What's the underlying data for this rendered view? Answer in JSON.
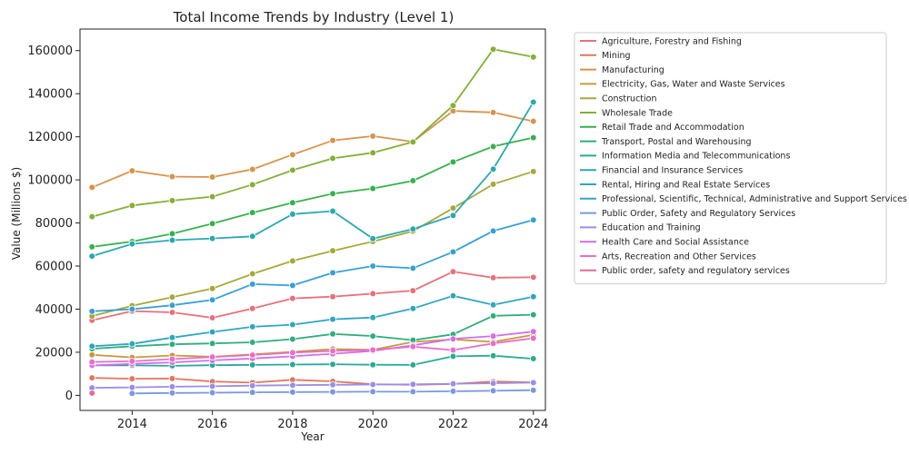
{
  "chart_data": {
    "type": "line",
    "title": "Total Income Trends by Industry (Level 1)",
    "xlabel": "Year",
    "ylabel": "Value (Millions $)",
    "xlim": [
      2012.7,
      2024.3
    ],
    "ylim": [
      -7000,
      170000
    ],
    "xticks": [
      2014,
      2016,
      2018,
      2020,
      2022,
      2024
    ],
    "yticks": [
      0,
      20000,
      40000,
      60000,
      80000,
      100000,
      120000,
      140000,
      160000
    ],
    "grid": false,
    "legend_position": "outside-right",
    "markers": true,
    "series": [
      {
        "name": "Agriculture, Forestry and Fishing",
        "color": "#e8707a",
        "x": [
          2013,
          2014,
          2015,
          2016,
          2017,
          2018,
          2019,
          2020,
          2021,
          2022,
          2023,
          2024
        ],
        "values": [
          34800,
          39100,
          38500,
          36000,
          40300,
          45000,
          45800,
          47200,
          48600,
          57400,
          54600,
          54800
        ]
      },
      {
        "name": "Mining",
        "color": "#e0785e",
        "x": [
          2013,
          2014,
          2015,
          2016,
          2017,
          2018,
          2019,
          2020,
          2021,
          2022,
          2023,
          2024
        ],
        "values": [
          8100,
          7700,
          7800,
          6400,
          5900,
          7200,
          6500,
          5200,
          4900,
          5300,
          6400,
          6000
        ]
      },
      {
        "name": "Manufacturing",
        "color": "#d8934a",
        "x": [
          2013,
          2014,
          2015,
          2016,
          2017,
          2018,
          2019,
          2020,
          2021,
          2022,
          2023,
          2024
        ],
        "values": [
          96500,
          104200,
          101500,
          101300,
          104900,
          111700,
          118300,
          120300,
          117700,
          132000,
          131300,
          127200
        ]
      },
      {
        "name": "Electricity, Gas, Water and Waste Services",
        "color": "#c59b3e",
        "x": [
          2013,
          2014,
          2015,
          2016,
          2017,
          2018,
          2019,
          2020,
          2021,
          2022,
          2023,
          2024
        ],
        "values": [
          18800,
          17600,
          18500,
          17900,
          19000,
          20200,
          21500,
          21100,
          24800,
          25900,
          24800,
          28100
        ]
      },
      {
        "name": "Construction",
        "color": "#a8a83a",
        "x": [
          2013,
          2014,
          2015,
          2016,
          2017,
          2018,
          2019,
          2020,
          2021,
          2022,
          2023,
          2024
        ],
        "values": [
          36800,
          41600,
          45600,
          49600,
          56400,
          62400,
          67100,
          71400,
          76200,
          86900,
          98000,
          103900
        ]
      },
      {
        "name": "Wholesale Trade",
        "color": "#84b035",
        "x": [
          2013,
          2014,
          2015,
          2016,
          2017,
          2018,
          2019,
          2020,
          2021,
          2022,
          2023,
          2024
        ],
        "values": [
          82900,
          88100,
          90400,
          92200,
          97800,
          104500,
          110000,
          112600,
          117600,
          134500,
          160600,
          157000
        ]
      },
      {
        "name": "Retail Trade and Accommodation",
        "color": "#37b14a",
        "x": [
          2013,
          2014,
          2015,
          2016,
          2017,
          2018,
          2019,
          2020,
          2021,
          2022,
          2023,
          2024
        ],
        "values": [
          68900,
          71400,
          75000,
          79700,
          84800,
          89400,
          93600,
          96000,
          99600,
          108300,
          115500,
          119600
        ]
      },
      {
        "name": "Transport, Postal and Warehousing",
        "color": "#2fae7c",
        "x": [
          2013,
          2014,
          2015,
          2016,
          2017,
          2018,
          2019,
          2020,
          2021,
          2022,
          2023,
          2024
        ],
        "values": [
          21600,
          22800,
          23700,
          24100,
          24600,
          26100,
          28500,
          27500,
          25600,
          28300,
          36900,
          37400
        ]
      },
      {
        "name": "Information Media and Telecommunications",
        "color": "#2aab95",
        "x": [
          2013,
          2014,
          2015,
          2016,
          2017,
          2018,
          2019,
          2020,
          2021,
          2022,
          2023,
          2024
        ],
        "values": [
          13900,
          13900,
          13700,
          14000,
          14100,
          14300,
          14400,
          14200,
          14100,
          18100,
          18400,
          17000
        ]
      },
      {
        "name": "Financial and Insurance Services",
        "color": "#2aa9b0",
        "x": [
          2013,
          2014,
          2015,
          2016,
          2017,
          2018,
          2019,
          2020,
          2021,
          2022,
          2023,
          2024
        ],
        "values": [
          64600,
          70300,
          72000,
          72800,
          73800,
          84100,
          85500,
          72700,
          77200,
          83500,
          105000,
          136100
        ]
      },
      {
        "name": "Rental, Hiring and Real Estate Services",
        "color": "#2fa6c1",
        "x": [
          2013,
          2014,
          2015,
          2016,
          2017,
          2018,
          2019,
          2020,
          2021,
          2022,
          2023,
          2024
        ],
        "values": [
          22800,
          23900,
          26800,
          29400,
          31800,
          32800,
          35300,
          36100,
          40300,
          46200,
          42000,
          45800
        ]
      },
      {
        "name": "Professional, Scientific, Technical, Administrative and Support Services",
        "color": "#37a0d4",
        "x": [
          2013,
          2014,
          2015,
          2016,
          2017,
          2018,
          2019,
          2020,
          2021,
          2022,
          2023,
          2024
        ],
        "values": [
          39000,
          40000,
          41800,
          44300,
          51600,
          51000,
          56900,
          60000,
          59000,
          66600,
          76300,
          81400
        ]
      },
      {
        "name": "Public Order, Safety and Regulatory Services",
        "color": "#7a98e0",
        "x": [
          2014,
          2015,
          2016,
          2017,
          2018,
          2019,
          2020,
          2021,
          2022,
          2023,
          2024
        ],
        "values": [
          900,
          1100,
          1200,
          1400,
          1500,
          1600,
          1700,
          1700,
          1900,
          2100,
          2400
        ]
      },
      {
        "name": "Education and Training",
        "color": "#9b8ee6",
        "x": [
          2013,
          2014,
          2015,
          2016,
          2017,
          2018,
          2019,
          2020,
          2021,
          2022,
          2023,
          2024
        ],
        "values": [
          3500,
          3700,
          4000,
          4200,
          4500,
          4700,
          4900,
          5000,
          5100,
          5400,
          5600,
          5900
        ]
      },
      {
        "name": "Health Care and Social Assistance",
        "color": "#d36fe8",
        "x": [
          2013,
          2014,
          2015,
          2016,
          2017,
          2018,
          2019,
          2020,
          2021,
          2022,
          2023,
          2024
        ],
        "values": [
          13900,
          14600,
          15300,
          16200,
          17100,
          18100,
          19300,
          20600,
          23200,
          26200,
          27500,
          29600
        ]
      },
      {
        "name": "Arts, Recreation and Other Services",
        "color": "#e86fc8",
        "x": [
          2013,
          2014,
          2015,
          2016,
          2017,
          2018,
          2019,
          2020,
          2021,
          2022,
          2023,
          2024
        ],
        "values": [
          15500,
          15800,
          16800,
          17800,
          18700,
          19800,
          20600,
          21100,
          22600,
          21000,
          24100,
          26500
        ]
      },
      {
        "name": "Public order, safety and regulatory services",
        "color": "#e86a96",
        "x": [
          2013
        ],
        "values": [
          1000
        ]
      }
    ]
  }
}
